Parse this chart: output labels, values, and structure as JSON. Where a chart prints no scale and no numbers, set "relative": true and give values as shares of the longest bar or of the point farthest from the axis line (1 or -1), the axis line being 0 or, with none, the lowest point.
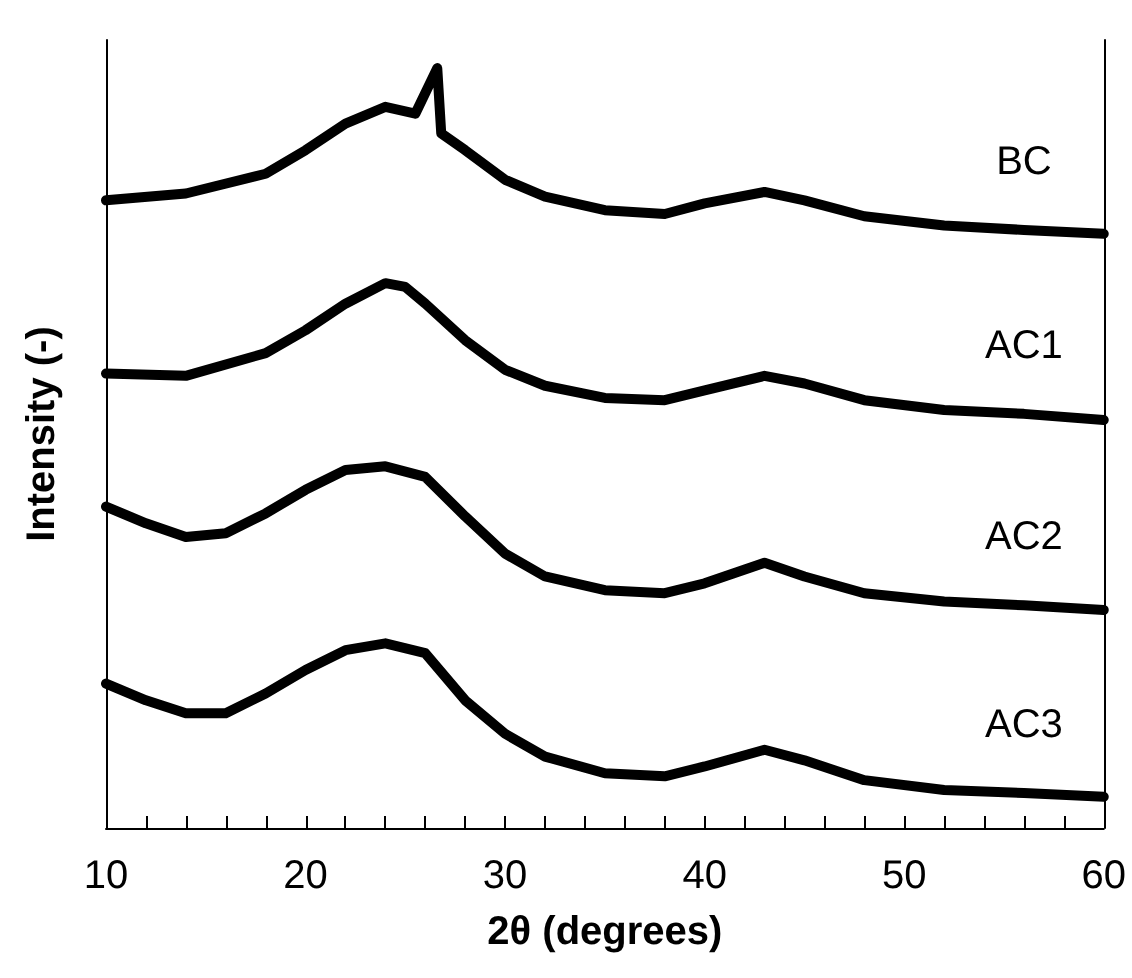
{
  "chart_data": {
    "type": "line",
    "relative": true,
    "xlabel": "2θ (degrees)",
    "ylabel": "Intensity (-)",
    "xlim": [
      10,
      60
    ],
    "xticks": [
      10,
      {
        "value": 12,
        "label": null
      },
      {
        "value": 14,
        "label": null
      },
      {
        "value": 16,
        "label": null
      },
      {
        "value": 18,
        "label": null
      },
      20,
      {
        "value": 22,
        "label": null
      },
      {
        "value": 24,
        "label": null
      },
      {
        "value": 26,
        "label": null
      },
      {
        "value": 28,
        "label": null
      },
      30,
      {
        "value": 32,
        "label": null
      },
      {
        "value": 34,
        "label": null
      },
      {
        "value": 36,
        "label": null
      },
      {
        "value": 38,
        "label": null
      },
      40,
      {
        "value": 42,
        "label": null
      },
      {
        "value": 44,
        "label": null
      },
      {
        "value": 46,
        "label": null
      },
      {
        "value": 48,
        "label": null
      },
      50,
      {
        "value": 52,
        "label": null
      },
      {
        "value": 54,
        "label": null
      },
      {
        "value": 56,
        "label": null
      },
      {
        "value": 58,
        "label": null
      },
      60
    ],
    "grid": false,
    "legend": false,
    "marker": "none",
    "line_style": "solid",
    "series": [
      {
        "name": "BC",
        "color": "#000000",
        "x": [
          10,
          14,
          18,
          20,
          22,
          24,
          25.5,
          26.6,
          26.8,
          28,
          30,
          32,
          35,
          38,
          40,
          43,
          45,
          48,
          52,
          56,
          60
        ],
        "values": [
          0.826,
          0.835,
          0.861,
          0.892,
          0.927,
          0.949,
          0.94,
          1,
          0.914,
          0.892,
          0.853,
          0.831,
          0.813,
          0.808,
          0.822,
          0.837,
          0.826,
          0.805,
          0.793,
          0.787,
          0.782
        ]
      },
      {
        "name": "AC1",
        "color": "#000000",
        "x": [
          10,
          14,
          18,
          20,
          22,
          24,
          25,
          26,
          28,
          30,
          32,
          35,
          38,
          40,
          43,
          45,
          48,
          52,
          56,
          60
        ],
        "values": [
          0.598,
          0.595,
          0.625,
          0.655,
          0.69,
          0.717,
          0.712,
          0.69,
          0.642,
          0.603,
          0.582,
          0.566,
          0.563,
          0.576,
          0.595,
          0.585,
          0.563,
          0.55,
          0.545,
          0.537
        ]
      },
      {
        "name": "AC2",
        "color": "#000000",
        "x": [
          10,
          12,
          14,
          16,
          18,
          20,
          22,
          24,
          26,
          28,
          30,
          32,
          35,
          38,
          40,
          43,
          45,
          48,
          52,
          56,
          60
        ],
        "values": [
          0.423,
          0.401,
          0.383,
          0.388,
          0.414,
          0.445,
          0.471,
          0.476,
          0.462,
          0.41,
          0.361,
          0.331,
          0.313,
          0.309,
          0.322,
          0.349,
          0.331,
          0.309,
          0.298,
          0.293,
          0.287
        ]
      },
      {
        "name": "AC3",
        "color": "#000000",
        "x": [
          10,
          12,
          14,
          16,
          18,
          20,
          22,
          24,
          26,
          28,
          30,
          32,
          35,
          38,
          40,
          43,
          45,
          48,
          52,
          56,
          60
        ],
        "values": [
          0.19,
          0.168,
          0.151,
          0.151,
          0.177,
          0.208,
          0.234,
          0.243,
          0.23,
          0.168,
          0.124,
          0.094,
          0.072,
          0.068,
          0.081,
          0.103,
          0.089,
          0.063,
          0.05,
          0.046,
          0.041
        ]
      }
    ]
  }
}
